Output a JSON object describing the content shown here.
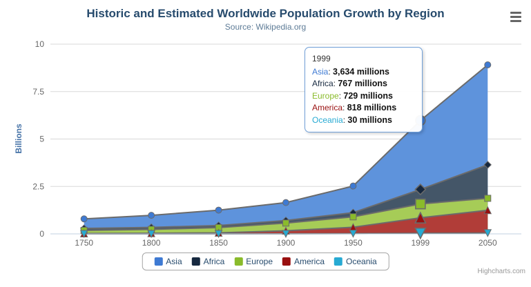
{
  "chart_data": {
    "type": "area",
    "stacking": "normal",
    "title": "Historic and Estimated Worldwide Population Growth by Region",
    "subtitle": "Source: Wikipedia.org",
    "categories": [
      "1750",
      "1800",
      "1850",
      "1900",
      "1950",
      "1999",
      "2050"
    ],
    "series": [
      {
        "name": "Asia",
        "color": "#3E7AD3",
        "fill": "#5E93DC",
        "marker": "circle",
        "data_millions": [
          502,
          635,
          809,
          947,
          1402,
          3634,
          5268
        ],
        "tooltip_value": "3,634 millions"
      },
      {
        "name": "Africa",
        "color": "#16283F",
        "fill": "#445668",
        "marker": "diamond",
        "data_millions": [
          106,
          107,
          111,
          133,
          221,
          767,
          1766
        ],
        "tooltip_value": "767 millions"
      },
      {
        "name": "Europe",
        "color": "#8ABB2B",
        "fill": "#A6CC57",
        "marker": "square",
        "data_millions": [
          163,
          203,
          276,
          408,
          547,
          729,
          628
        ],
        "tooltip_value": "729 millions"
      },
      {
        "name": "America",
        "color": "#990F0F",
        "fill": "#B13D38",
        "marker": "triangle",
        "data_millions": [
          18,
          31,
          54,
          156,
          339,
          818,
          1201
        ],
        "tooltip_value": "818 millions"
      },
      {
        "name": "Oceania",
        "color": "#27AAD3",
        "fill": "#35B6DB",
        "marker": "triangle-down",
        "data_millions": [
          2,
          2,
          2,
          6,
          13,
          30,
          46
        ],
        "tooltip_value": "30 millions"
      }
    ],
    "stack_order_bottom_to_top": [
      "Oceania",
      "America",
      "Europe",
      "Africa",
      "Asia"
    ],
    "xlabel": "",
    "ylabel": "Billions",
    "ylim": [
      0,
      10
    ],
    "yticks": [
      "0",
      "2.5",
      "5",
      "7.5",
      "10"
    ],
    "values_unit": "millions",
    "y_axis_unit": "billions",
    "grid": "horizontal",
    "legend_position": "bottom",
    "hovered_category_index": 5,
    "hovered_category": "1999"
  },
  "tooltip": {
    "header": "1999"
  },
  "footer": {
    "credit": "Highcharts.com"
  },
  "style_colors": {
    "title_text": "#274b6d",
    "subtitle_text": "#5d7b96",
    "axis_label_text": "#666666",
    "y_axis_title_text": "#4572A7",
    "legend_text": "#274b6d",
    "series_edge_line": "#6B6B6B",
    "grid_line": "#D8D8D8",
    "x_axis_line": "#C0D0E0",
    "tooltip_border": "#6F9FD8",
    "export_icon": "#666666",
    "credit_text": "#999999"
  }
}
